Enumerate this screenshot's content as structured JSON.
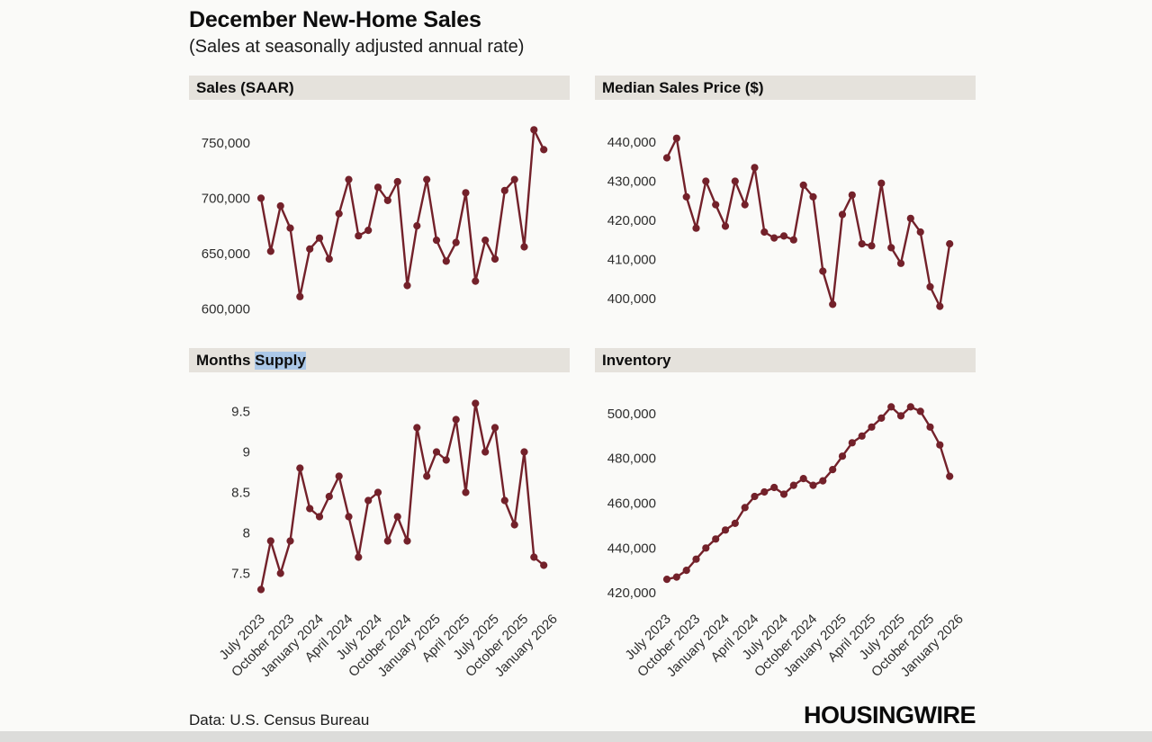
{
  "header": {
    "title": "December New-Home Sales",
    "subtitle": "(Sales at seasonally adjusted annual rate)"
  },
  "footer": {
    "source": "Data: U.S. Census Bureau",
    "brand": "HOUSINGWIRE"
  },
  "colors": {
    "line": "#73212a",
    "panel_header_bg": "#e5e2dc",
    "selection_highlight": "#abc8e8",
    "background": "#fafaf8"
  },
  "x_axis": {
    "domain_max_index": 30,
    "tick_indices": [
      0,
      3,
      6,
      9,
      12,
      15,
      18,
      21,
      24,
      27,
      30
    ],
    "tick_labels": [
      "July 2023",
      "October 2023",
      "January 2024",
      "April 2024",
      "July 2024",
      "October 2024",
      "January 2025",
      "April 2025",
      "July 2025",
      "October 2025",
      "January 2026"
    ]
  },
  "chart_data": [
    {
      "type": "line",
      "name": "sales-saar",
      "title_prefix": "Sales (SAAR)",
      "title_selected": "",
      "categories": [
        "Jul 2023",
        "Aug 2023",
        "Sep 2023",
        "Oct 2023",
        "Nov 2023",
        "Dec 2023",
        "Jan 2024",
        "Feb 2024",
        "Mar 2024",
        "Apr 2024",
        "May 2024",
        "Jun 2024",
        "Jul 2024",
        "Aug 2024",
        "Sep 2024",
        "Oct 2024",
        "Nov 2024",
        "Dec 2024",
        "Jan 2025",
        "Feb 2025",
        "Mar 2025",
        "Apr 2025",
        "May 2025",
        "Jun 2025",
        "Jul 2025",
        "Aug 2025",
        "Sep 2025",
        "Oct 2025",
        "Nov 2025",
        "Dec 2025"
      ],
      "values": [
        700000,
        652000,
        693000,
        673000,
        611000,
        654000,
        664000,
        645000,
        686000,
        717000,
        666000,
        671000,
        710000,
        698000,
        715000,
        621000,
        675000,
        717000,
        662000,
        643000,
        660000,
        705000,
        625000,
        662000,
        645000,
        707000,
        717000,
        656000,
        762000,
        744000
      ],
      "ylim": [
        588000,
        772000
      ],
      "y_ticks": [
        600000,
        650000,
        700000,
        750000
      ],
      "y_tick_labels": [
        "600,000",
        "650,000",
        "700,000",
        "750,000"
      ],
      "grid": false,
      "legend": "none",
      "show_x_labels": false
    },
    {
      "type": "line",
      "name": "median-sales-price",
      "title_prefix": "Median Sales Price ($)",
      "title_selected": "",
      "categories": [
        "Jul 2023",
        "Aug 2023",
        "Sep 2023",
        "Oct 2023",
        "Nov 2023",
        "Dec 2023",
        "Jan 2024",
        "Feb 2024",
        "Mar 2024",
        "Apr 2024",
        "May 2024",
        "Jun 2024",
        "Jul 2024",
        "Aug 2024",
        "Sep 2024",
        "Oct 2024",
        "Nov 2024",
        "Dec 2024",
        "Jan 2025",
        "Feb 2025",
        "Mar 2025",
        "Apr 2025",
        "May 2025",
        "Jun 2025",
        "Jul 2025",
        "Aug 2025",
        "Sep 2025",
        "Oct 2025",
        "Nov 2025",
        "Dec 2025"
      ],
      "values": [
        436000,
        441000,
        426000,
        418000,
        430000,
        424000,
        418500,
        430000,
        424000,
        433500,
        417000,
        415500,
        416000,
        415000,
        429000,
        426000,
        407000,
        398500,
        421500,
        426500,
        414000,
        413500,
        429500,
        413000,
        409000,
        420500,
        417000,
        403000,
        398000,
        414000
      ],
      "ylim": [
        394000,
        446000
      ],
      "y_ticks": [
        400000,
        410000,
        420000,
        430000,
        440000
      ],
      "y_tick_labels": [
        "400,000",
        "410,000",
        "420,000",
        "430,000",
        "440,000"
      ],
      "grid": false,
      "legend": "none",
      "show_x_labels": false
    },
    {
      "type": "line",
      "name": "months-supply",
      "title_prefix": "Months ",
      "title_selected": "Supply",
      "categories": [
        "Jul 2023",
        "Aug 2023",
        "Sep 2023",
        "Oct 2023",
        "Nov 2023",
        "Dec 2023",
        "Jan 2024",
        "Feb 2024",
        "Mar 2024",
        "Apr 2024",
        "May 2024",
        "Jun 2024",
        "Jul 2024",
        "Aug 2024",
        "Sep 2024",
        "Oct 2024",
        "Nov 2024",
        "Dec 2024",
        "Jan 2025",
        "Feb 2025",
        "Mar 2025",
        "Apr 2025",
        "May 2025",
        "Jun 2025",
        "Jul 2025",
        "Aug 2025",
        "Sep 2025",
        "Oct 2025",
        "Nov 2025",
        "Dec 2025"
      ],
      "values": [
        7.3,
        7.9,
        7.5,
        7.9,
        8.8,
        8.3,
        8.2,
        8.45,
        8.7,
        8.2,
        7.7,
        8.4,
        8.5,
        7.9,
        8.2,
        7.9,
        9.3,
        8.7,
        9.0,
        8.9,
        9.4,
        8.5,
        9.6,
        9.0,
        9.3,
        8.4,
        8.1,
        9.0,
        7.7,
        7.6
      ],
      "ylim": [
        7.15,
        9.75
      ],
      "y_ticks": [
        7.5,
        8,
        8.5,
        9,
        9.5
      ],
      "y_tick_labels": [
        "7.5",
        "8",
        "8.5",
        "9",
        "9.5"
      ],
      "grid": false,
      "legend": "none",
      "show_x_labels": true
    },
    {
      "type": "line",
      "name": "inventory",
      "title_prefix": "Inventory",
      "title_selected": "",
      "categories": [
        "Jul 2023",
        "Aug 2023",
        "Sep 2023",
        "Oct 2023",
        "Nov 2023",
        "Dec 2023",
        "Jan 2024",
        "Feb 2024",
        "Mar 2024",
        "Apr 2024",
        "May 2024",
        "Jun 2024",
        "Jul 2024",
        "Aug 2024",
        "Sep 2024",
        "Oct 2024",
        "Nov 2024",
        "Dec 2024",
        "Jan 2025",
        "Feb 2025",
        "Mar 2025",
        "Apr 2025",
        "May 2025",
        "Jun 2025",
        "Jul 2025",
        "Aug 2025",
        "Sep 2025",
        "Oct 2025",
        "Nov 2025",
        "Dec 2025"
      ],
      "values": [
        426000,
        427000,
        430000,
        435000,
        440000,
        444000,
        448000,
        451000,
        458000,
        463000,
        465000,
        467000,
        464000,
        468000,
        471000,
        468000,
        470000,
        475000,
        481000,
        487000,
        490000,
        494000,
        498000,
        503000,
        499000,
        503000,
        501000,
        494000,
        486000,
        472000
      ],
      "ylim": [
        416000,
        510000
      ],
      "y_ticks": [
        420000,
        440000,
        460000,
        480000,
        500000
      ],
      "y_tick_labels": [
        "420,000",
        "440,000",
        "460,000",
        "480,000",
        "500,000"
      ],
      "grid": false,
      "legend": "none",
      "show_x_labels": true
    }
  ]
}
